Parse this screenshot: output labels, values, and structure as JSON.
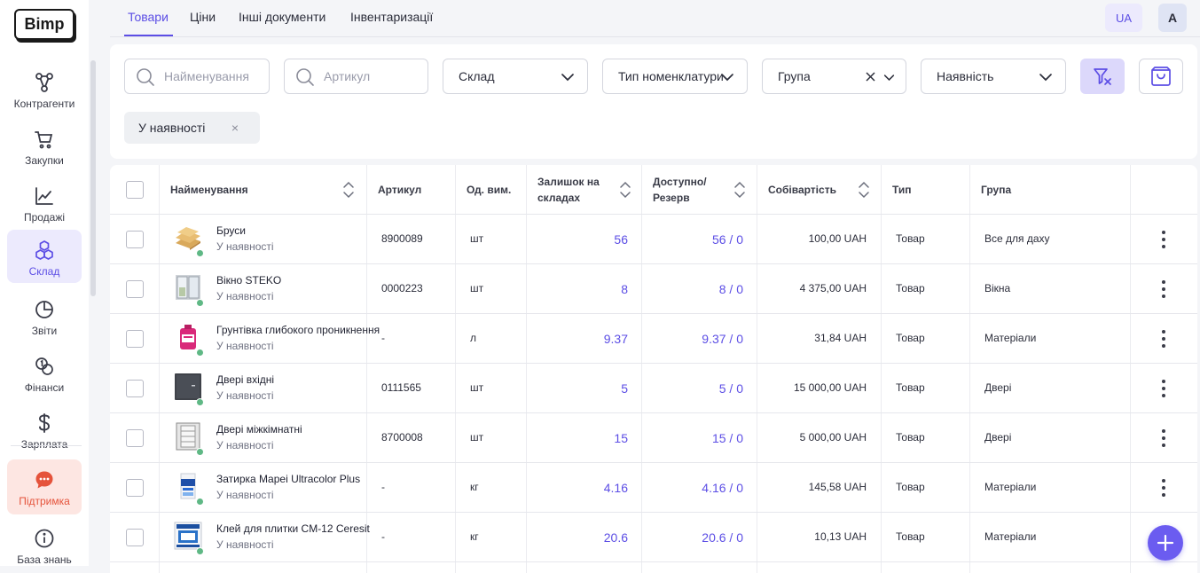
{
  "app": {
    "logo": "Bimp"
  },
  "sidebar": {
    "items": [
      {
        "label": "Контрагенти",
        "icon": "contractors-icon"
      },
      {
        "label": "Закупки",
        "icon": "cart-icon"
      },
      {
        "label": "Продажі",
        "icon": "chart-line-icon"
      },
      {
        "label": "Склад",
        "icon": "boxes-icon",
        "active": true
      },
      {
        "label": "Звіти",
        "icon": "pie-chart-icon"
      },
      {
        "label": "Фінанси",
        "icon": "coins-icon"
      },
      {
        "label": "Зарплата",
        "icon": "dollar-icon"
      },
      {
        "label": "Підтримка",
        "icon": "chat-icon"
      },
      {
        "label": "База знань",
        "icon": "info-icon"
      }
    ]
  },
  "tabs": [
    "Товари",
    "Ціни",
    "Інші документи",
    "Інвентаризації"
  ],
  "header": {
    "lang": "UA",
    "avatar": "A"
  },
  "filters": {
    "name_placeholder": "Найменування",
    "article_placeholder": "Артикул",
    "warehouse": "Склад",
    "nomenclature_type": "Тип номенклатури",
    "group": "Група",
    "availability": "Наявність",
    "active_chip": "У наявності",
    "chip_close": "×"
  },
  "table": {
    "columns": {
      "name": "Найменування",
      "article": "Артикул",
      "unit": "Од. вим.",
      "stock": "Залишок на складах",
      "available": "Доступно/ Резерв",
      "cost": "Собівартість",
      "type": "Тип",
      "group": "Група"
    },
    "rows": [
      {
        "name": "Бруси",
        "status": "У наявності",
        "article": "8900089",
        "unit": "шт",
        "stock": "56",
        "available": "56 / 0",
        "cost": "100,00 UAH",
        "type": "Товар",
        "group": "Все для даху"
      },
      {
        "name": "Вікно STEKO",
        "status": "У наявності",
        "article": "0000223",
        "unit": "шт",
        "stock": "8",
        "available": "8 / 0",
        "cost": "4 375,00 UAH",
        "type": "Товар",
        "group": "Вікна"
      },
      {
        "name": "Грунтівка глибокого проникнення",
        "status": "У наявності",
        "article": "-",
        "unit": "л",
        "stock": "9.37",
        "available": "9.37 / 0",
        "cost": "31,84 UAH",
        "type": "Товар",
        "group": "Матеріали"
      },
      {
        "name": "Двері вхідні",
        "status": "У наявності",
        "article": "0111565",
        "unit": "шт",
        "stock": "5",
        "available": "5 / 0",
        "cost": "15 000,00 UAH",
        "type": "Товар",
        "group": "Двері"
      },
      {
        "name": "Двері міжкімнатні",
        "status": "У наявності",
        "article": "8700008",
        "unit": "шт",
        "stock": "15",
        "available": "15 / 0",
        "cost": "5 000,00 UAH",
        "type": "Товар",
        "group": "Двері"
      },
      {
        "name": "Затирка Mapei Ultracolor Plus",
        "status": "У наявності",
        "article": "-",
        "unit": "кг",
        "stock": "4.16",
        "available": "4.16 / 0",
        "cost": "145,58 UAH",
        "type": "Товар",
        "group": "Матеріали"
      },
      {
        "name": "Клей для плитки CM-12 Ceresit",
        "status": "У наявності",
        "article": "-",
        "unit": "кг",
        "stock": "20.6",
        "available": "20.6 / 0",
        "cost": "10,13 UAH",
        "type": "Товар",
        "group": "Матеріали"
      }
    ]
  },
  "colors": {
    "accent": "#5c4ee5",
    "success": "#5fb885",
    "support": "#e5533b"
  }
}
